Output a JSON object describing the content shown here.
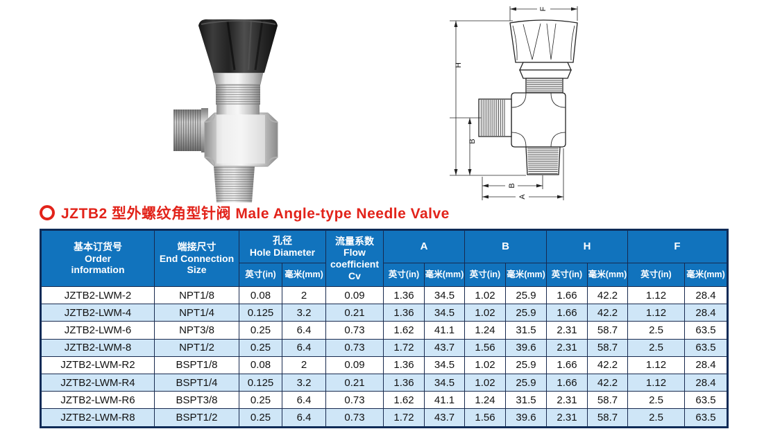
{
  "title": {
    "text": "JZTB2 型外螺纹角型针阀  Male Angle-type Needle Valve",
    "color": "#e2231a"
  },
  "figures": {
    "photo_alt": "male-angle-type-needle-valve-photo",
    "drawing_alt": "male-angle-type-needle-valve-dimension-drawing",
    "drawing_labels": {
      "f": "F",
      "h": "H",
      "b_side": "B",
      "b_bottom": "B",
      "a": "A"
    }
  },
  "table": {
    "colors": {
      "header_bg": "#1173bd",
      "alt_row_bg": "#cfe6f7",
      "border": "#17294e",
      "header_text": "#ffffff"
    },
    "headers": {
      "order": "基本订货号\nOrder\ninformation",
      "end_connection": "端接尺寸\nEnd Connection Size",
      "hole_diameter": "孔径\nHole Diameter",
      "flow": "流量系数\nFlow\ncoefficient\nCv",
      "a": "A",
      "b": "B",
      "h": "H",
      "f": "F",
      "inch": "英寸(in)",
      "mm": "毫米(mm)"
    },
    "rows": [
      [
        "JZTB2-LWM-2",
        "NPT1/8",
        "0.08",
        "2",
        "0.09",
        "1.36",
        "34.5",
        "1.02",
        "25.9",
        "1.66",
        "42.2",
        "1.12",
        "28.4"
      ],
      [
        "JZTB2-LWM-4",
        "NPT1/4",
        "0.125",
        "3.2",
        "0.21",
        "1.36",
        "34.5",
        "1.02",
        "25.9",
        "1.66",
        "42.2",
        "1.12",
        "28.4"
      ],
      [
        "JZTB2-LWM-6",
        "NPT3/8",
        "0.25",
        "6.4",
        "0.73",
        "1.62",
        "41.1",
        "1.24",
        "31.5",
        "2.31",
        "58.7",
        "2.5",
        "63.5"
      ],
      [
        "JZTB2-LWM-8",
        "NPT1/2",
        "0.25",
        "6.4",
        "0.73",
        "1.72",
        "43.7",
        "1.56",
        "39.6",
        "2.31",
        "58.7",
        "2.5",
        "63.5"
      ],
      [
        "JZTB2-LWM-R2",
        "BSPT1/8",
        "0.08",
        "2",
        "0.09",
        "1.36",
        "34.5",
        "1.02",
        "25.9",
        "1.66",
        "42.2",
        "1.12",
        "28.4"
      ],
      [
        "JZTB2-LWM-R4",
        "BSPT1/4",
        "0.125",
        "3.2",
        "0.21",
        "1.36",
        "34.5",
        "1.02",
        "25.9",
        "1.66",
        "42.2",
        "1.12",
        "28.4"
      ],
      [
        "JZTB2-LWM-R6",
        "BSPT3/8",
        "0.25",
        "6.4",
        "0.73",
        "1.62",
        "41.1",
        "1.24",
        "31.5",
        "2.31",
        "58.7",
        "2.5",
        "63.5"
      ],
      [
        "JZTB2-LWM-R8",
        "BSPT1/2",
        "0.25",
        "6.4",
        "0.73",
        "1.72",
        "43.7",
        "1.56",
        "39.6",
        "2.31",
        "58.7",
        "2.5",
        "63.5"
      ]
    ]
  }
}
